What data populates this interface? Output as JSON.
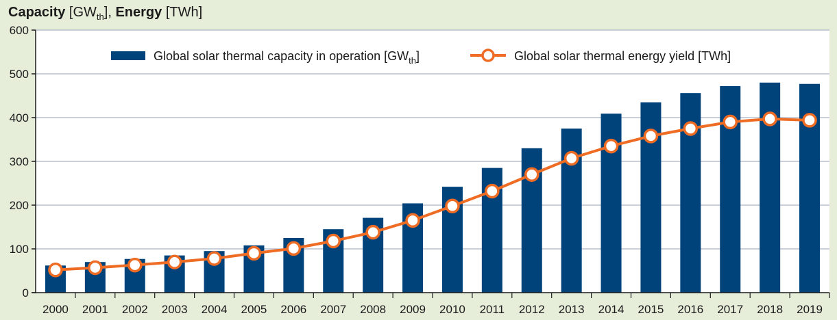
{
  "chart_data": {
    "type": "bar",
    "title": {
      "part1_bold": "Capacity",
      "part1_unit_open": " [GW",
      "part1_unit_sub": "th",
      "part1_unit_close": "]",
      "sep": ", ",
      "part2_bold": "Energy",
      "part2_unit": " [TWh]"
    },
    "xlabel": "",
    "categories": [
      "2000",
      "2001",
      "2002",
      "2003",
      "2004",
      "2005",
      "2006",
      "2007",
      "2008",
      "2009",
      "2010",
      "2011",
      "2012",
      "2013",
      "2014",
      "2015",
      "2016",
      "2017",
      "2018",
      "2019"
    ],
    "series": [
      {
        "name_main": "Global solar thermal capacity in operation [GW",
        "name_sub": "th",
        "name_close": "]",
        "type": "bar",
        "color": "#00427a",
        "values": [
          62,
          70,
          77,
          85,
          95,
          108,
          125,
          145,
          171,
          204,
          242,
          285,
          330,
          375,
          409,
          435,
          456,
          472,
          480,
          477
        ]
      },
      {
        "name": "Global solar thermal energy yield [TWh]",
        "type": "line",
        "color": "#ee6c24",
        "values": [
          52,
          57,
          63,
          70,
          78,
          90,
          101,
          118,
          138,
          165,
          198,
          232,
          270,
          307,
          335,
          358,
          375,
          390,
          397,
          394
        ]
      }
    ],
    "yticks": [
      0,
      100,
      200,
      300,
      400,
      500,
      600
    ],
    "ylim": [
      0,
      600
    ],
    "grid": true,
    "legend": "top",
    "colors": {
      "background": "#e6eeda",
      "plot_background": "#ffffff",
      "grid": "#a9b4c6",
      "axis": "#1a1a1a"
    }
  }
}
